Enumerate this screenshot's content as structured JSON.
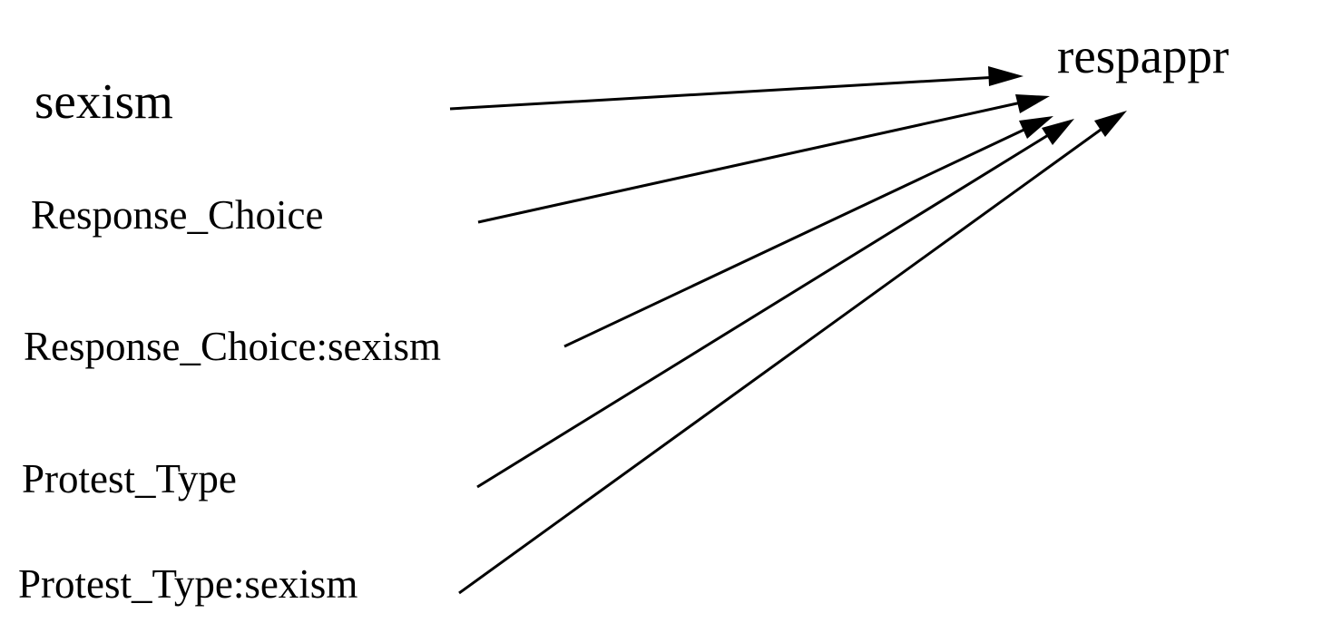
{
  "diagram": {
    "target": {
      "label": "respappr"
    },
    "predictors": [
      {
        "label": "sexism"
      },
      {
        "label": "Response_Choice"
      },
      {
        "label": "Response_Choice:sexism"
      },
      {
        "label": "Protest_Type"
      },
      {
        "label": "Protest_Type:sexism"
      }
    ],
    "edges": [
      {
        "from": "sexism",
        "to": "respappr"
      },
      {
        "from": "Response_Choice",
        "to": "respappr"
      },
      {
        "from": "Response_Choice:sexism",
        "to": "respappr"
      },
      {
        "from": "Protest_Type",
        "to": "respappr"
      },
      {
        "from": "Protest_Type:sexism",
        "to": "respappr"
      }
    ],
    "colors": {
      "line": "#000000",
      "text": "#000000",
      "background": "#ffffff"
    }
  }
}
